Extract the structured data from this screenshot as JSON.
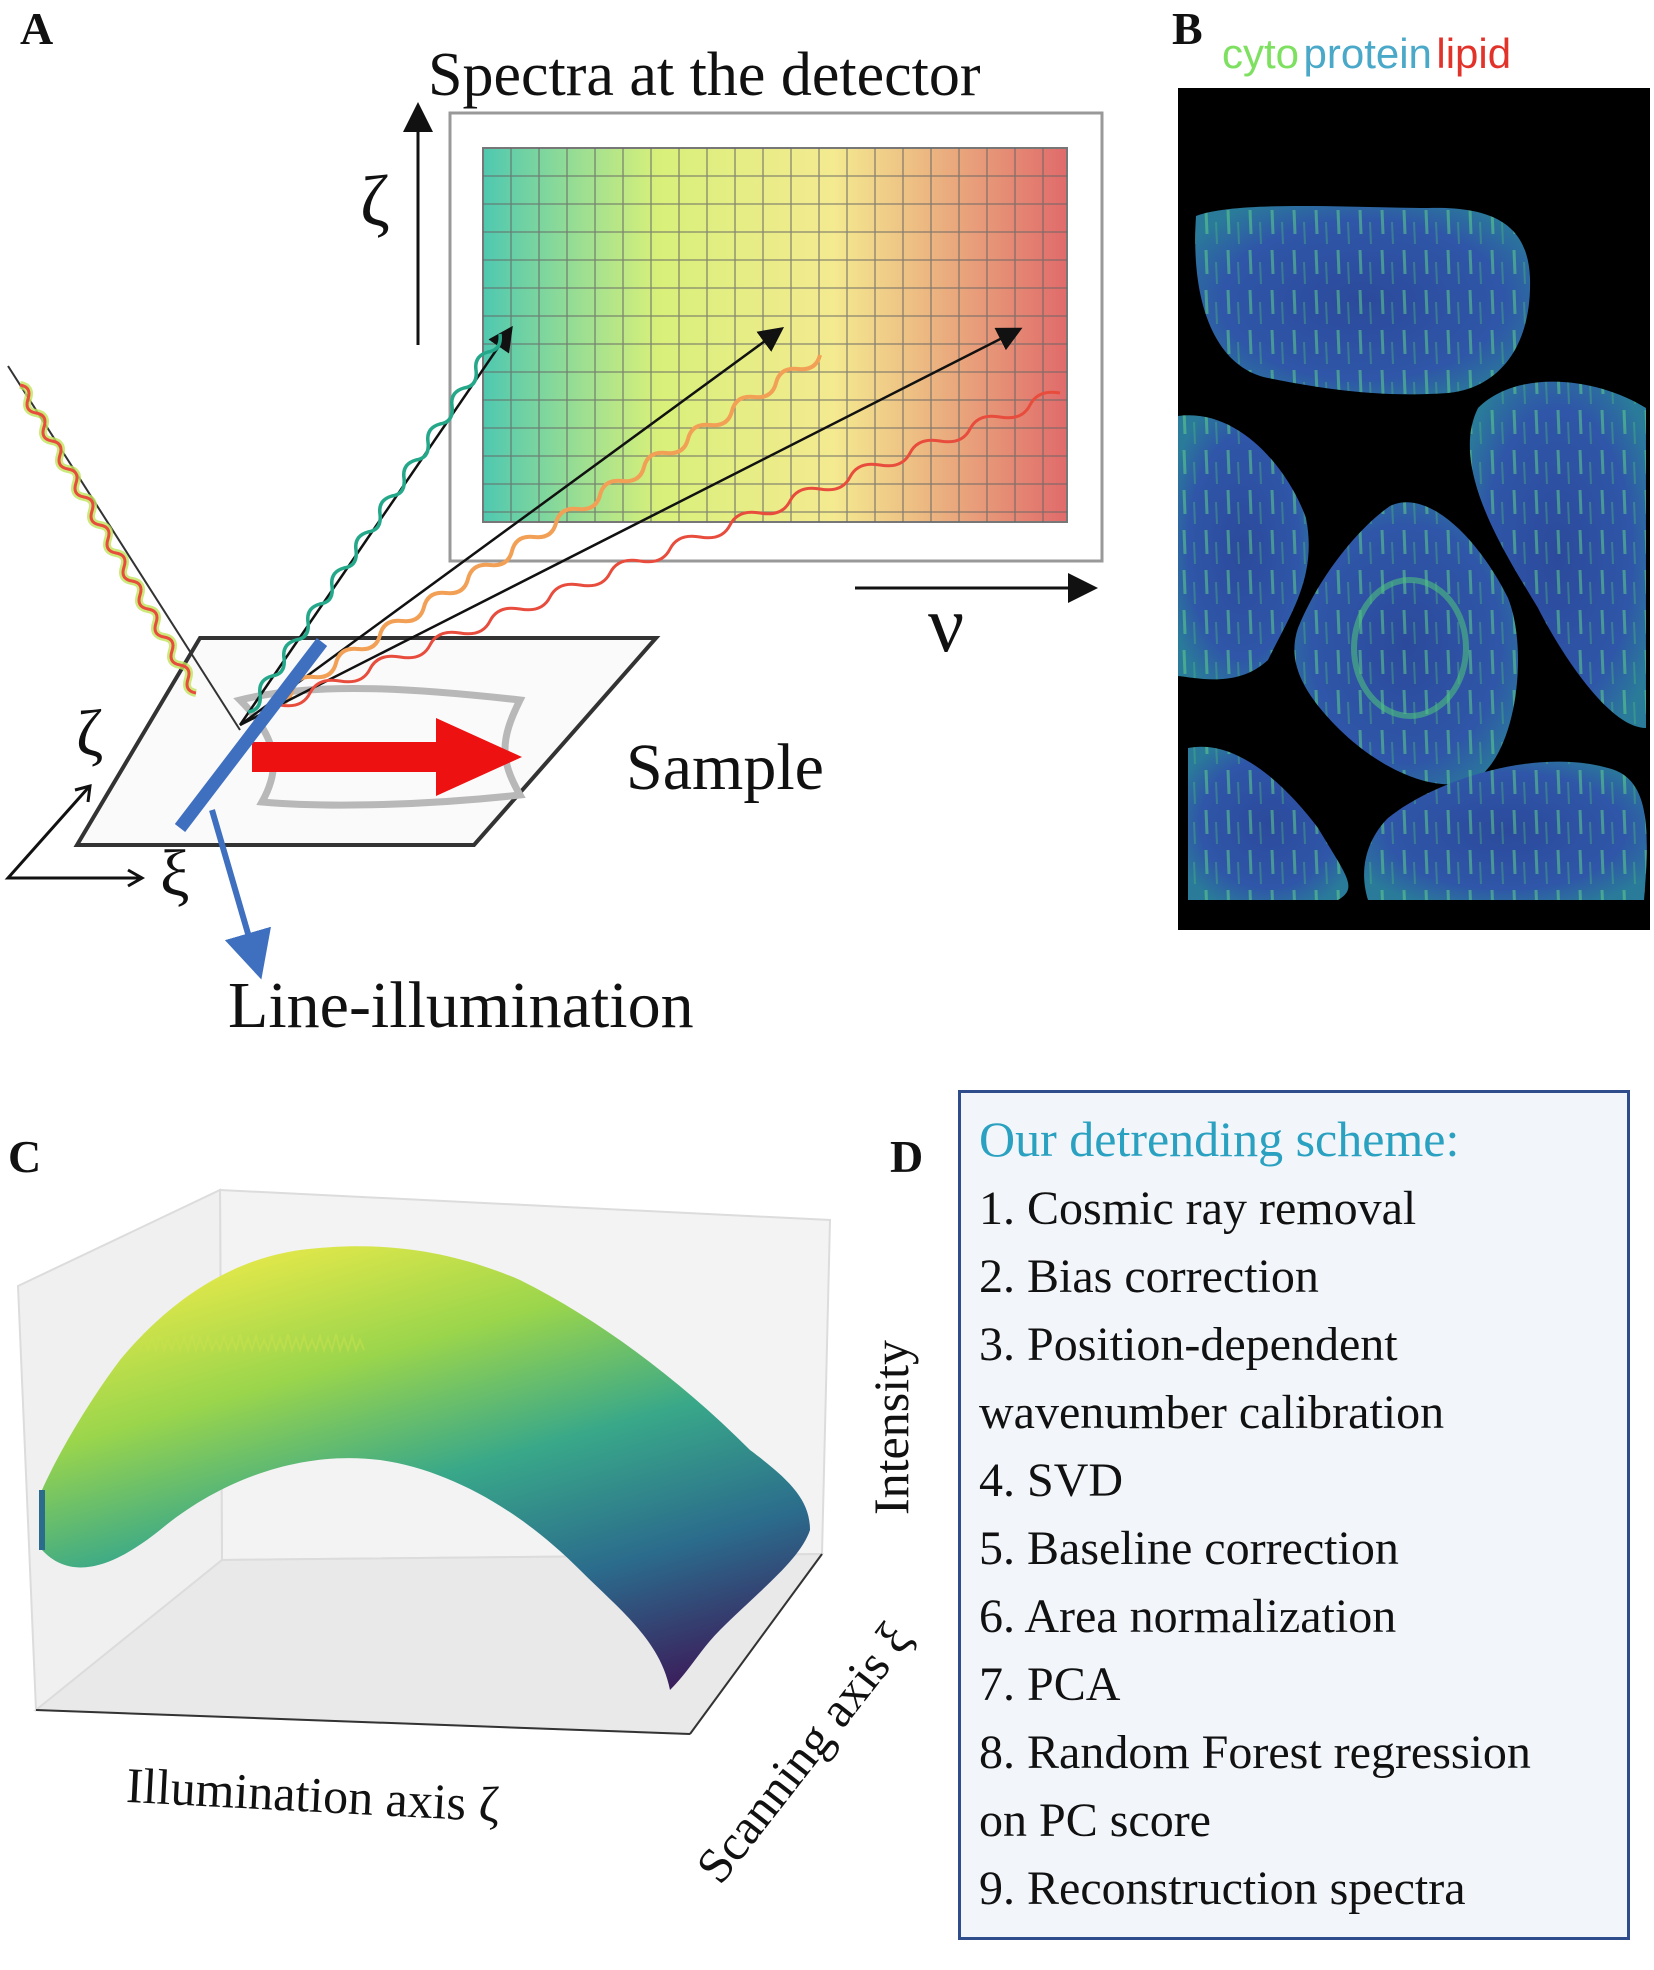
{
  "panels": {
    "a": {
      "label": "A",
      "detector_title": "Spectra at the detector",
      "axis_vertical": "ζ",
      "axis_horizontal": "ν",
      "sample_label": "Sample",
      "coord_zeta": "ζ",
      "coord_xi": "ξ",
      "illumination_label": "Line-illumination"
    },
    "b": {
      "label": "B",
      "legend": [
        {
          "text": "cyto",
          "color": "#7ee060"
        },
        {
          "text": "protein",
          "color": "#4aa8c8"
        },
        {
          "text": "lipid",
          "color": "#e2332b"
        }
      ]
    },
    "c": {
      "label": "C",
      "z_label": "Intensity",
      "x_label": "Illumination axis ζ",
      "y_label": "Scanning axis ξ"
    },
    "d": {
      "label": "D",
      "title": "Our detrending scheme:",
      "steps": [
        "1. Cosmic ray removal",
        "2. Bias correction",
        "3. Position-dependent",
        "wavenumber calibration",
        "4. SVD",
        "5. Baseline correction",
        "6. Area normalization",
        "7. PCA",
        "8. Random Forest regression",
        "on PC score",
        "9. Reconstruction spectra"
      ]
    }
  },
  "colors": {
    "spectrum_start": "#4fc8b0",
    "spectrum_mid": "#e8f27c",
    "spectrum_end": "#e06b6b",
    "beam_blue": "#3f6fbf",
    "scan_arrow_red": "#ee1111",
    "cell_blue": "#2e4fa0",
    "box_border": "#2f4d8a"
  }
}
